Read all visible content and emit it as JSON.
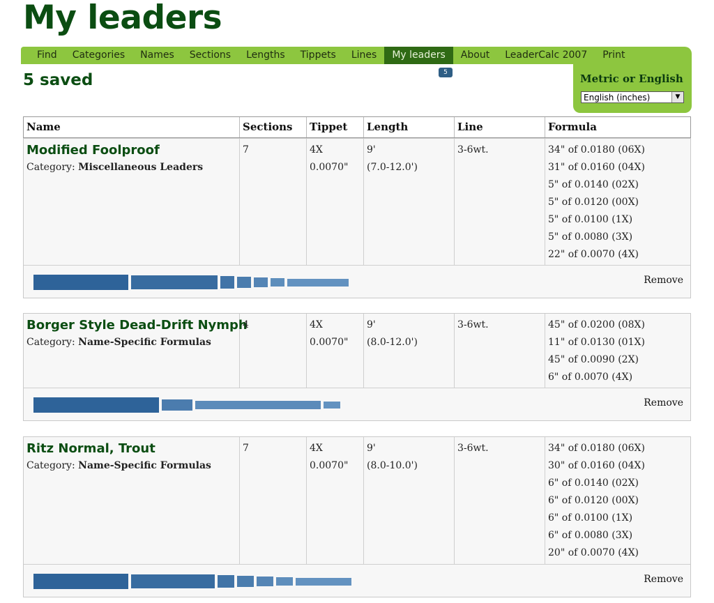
{
  "page": {
    "title": "My leaders",
    "saved_label": "5 saved"
  },
  "nav": {
    "items": [
      "Find",
      "Categories",
      "Names",
      "Sections",
      "Lengths",
      "Tippets",
      "Lines",
      "My leaders",
      "About",
      "LeaderCalc 2007",
      "Print"
    ],
    "active": "My leaders",
    "badge": "5"
  },
  "units": {
    "label": "Metric or English",
    "selected": "English (inches)"
  },
  "columns": [
    "Name",
    "Sections",
    "Tippet",
    "Length",
    "Line",
    "Formula"
  ],
  "leaders": [
    {
      "name": "Modified Foolproof",
      "category_prefix": "Category:",
      "category": "Miscellaneous Leaders",
      "sections": "7",
      "tippet": [
        "4X",
        "0.0070\""
      ],
      "length": [
        "9'",
        "(7.0-12.0')"
      ],
      "line": "3-6wt.",
      "formula": [
        "34\" of 0.0180 (06X)",
        "31\" of 0.0160 (04X)",
        "5\" of 0.0140 (02X)",
        "5\" of 0.0120 (00X)",
        "5\" of 0.0100 (1X)",
        "5\" of 0.0080 (3X)",
        "22\" of 0.0070 (4X)"
      ],
      "remove_label": "Remove"
    },
    {
      "name": "Borger Style Dead-Drift Nymph",
      "category_prefix": "Category:",
      "category": "Name-Specific Formulas",
      "sections": "4",
      "tippet": [
        "4X",
        "0.0070\""
      ],
      "length": [
        "9'",
        "(8.0-12.0')"
      ],
      "line": "3-6wt.",
      "formula": [
        "45\" of 0.0200 (08X)",
        "11\" of 0.0130 (01X)",
        "45\" of 0.0090 (2X)",
        "6\" of 0.0070 (4X)"
      ],
      "remove_label": "Remove"
    },
    {
      "name": "Ritz Normal, Trout",
      "category_prefix": "Category:",
      "category": "Name-Specific Formulas",
      "sections": "7",
      "tippet": [
        "4X",
        "0.0070\""
      ],
      "length": [
        "9'",
        "(8.0-10.0')"
      ],
      "line": "3-6wt.",
      "formula": [
        "34\" of 0.0180 (06X)",
        "30\" of 0.0160 (04X)",
        "6\" of 0.0140 (02X)",
        "6\" of 0.0120 (00X)",
        "6\" of 0.0100 (1X)",
        "6\" of 0.0080 (3X)",
        "20\" of 0.0070 (4X)"
      ],
      "remove_label": "Remove"
    }
  ],
  "bar_colors": {
    "thickest": "#2e6399",
    "thinnest": "#7aa6d0"
  }
}
